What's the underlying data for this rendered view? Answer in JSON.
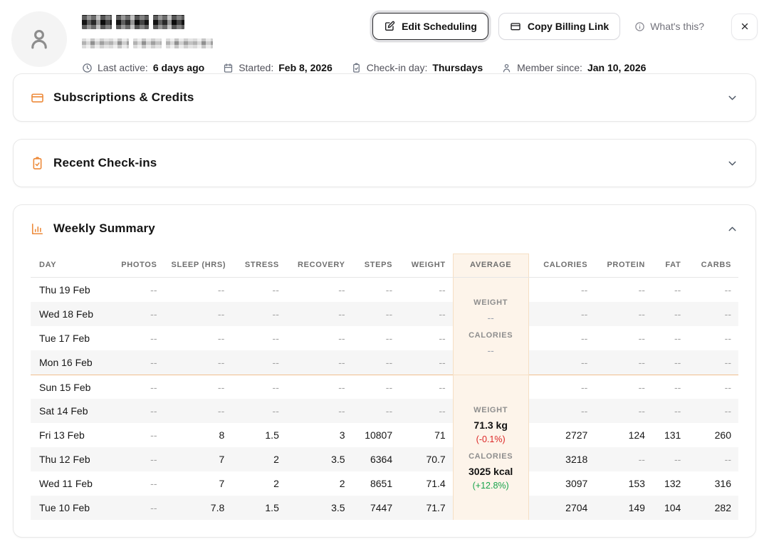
{
  "header": {
    "name_redacted": true,
    "email_redacted": true,
    "actions": {
      "edit_scheduling": "Edit Scheduling",
      "copy_billing_link": "Copy Billing Link",
      "whats_this": "What's this?"
    },
    "meta": {
      "items": [
        {
          "icon": "clock-icon",
          "label": "Last active: ",
          "value": "6 days ago"
        },
        {
          "icon": "calendar-icon",
          "label": "Started: ",
          "value": "Feb 8, 2026"
        },
        {
          "icon": "clipboard-check-icon",
          "label": "Check-in day: ",
          "value": "Thursdays"
        },
        {
          "icon": "person-icon",
          "label": "Member since: ",
          "value": "Jan 10, 2026"
        }
      ]
    }
  },
  "cards": {
    "subscriptions": {
      "title": "Subscriptions & Credits",
      "collapsed": true
    },
    "checkins": {
      "title": "Recent Check-ins",
      "collapsed": true
    },
    "weekly": {
      "title": "Weekly Summary",
      "collapsed": false
    }
  },
  "table": {
    "columns": [
      "DAY",
      "PHOTOS",
      "SLEEP (HRS)",
      "STRESS",
      "RECOVERY",
      "STEPS",
      "WEIGHT",
      "AVERAGE",
      "CALORIES",
      "PROTEIN",
      "FAT",
      "CARBS"
    ],
    "weeks": [
      {
        "average": {
          "weight_label": "WEIGHT",
          "weight_value": "--",
          "weight_change": null,
          "weight_change_positive": null,
          "calories_label": "CALORIES",
          "calories_value": "--",
          "calories_change": null,
          "calories_change_positive": null
        },
        "rows": [
          {
            "day": "Thu 19 Feb",
            "values": [
              "--",
              "--",
              "--",
              "--",
              "--",
              "--"
            ],
            "right": [
              "--",
              "--",
              "--",
              "--"
            ]
          },
          {
            "day": "Wed 18 Feb",
            "values": [
              "--",
              "--",
              "--",
              "--",
              "--",
              "--"
            ],
            "right": [
              "--",
              "--",
              "--",
              "--"
            ]
          },
          {
            "day": "Tue 17 Feb",
            "values": [
              "--",
              "--",
              "--",
              "--",
              "--",
              "--"
            ],
            "right": [
              "--",
              "--",
              "--",
              "--"
            ]
          },
          {
            "day": "Mon 16 Feb",
            "values": [
              "--",
              "--",
              "--",
              "--",
              "--",
              "--"
            ],
            "right": [
              "--",
              "--",
              "--",
              "--"
            ]
          }
        ]
      },
      {
        "average": {
          "weight_label": "WEIGHT",
          "weight_value": "71.3 kg",
          "weight_change": "(-0.1%)",
          "weight_change_positive": false,
          "calories_label": "CALORIES",
          "calories_value": "3025 kcal",
          "calories_change": "(+12.8%)",
          "calories_change_positive": true
        },
        "rows": [
          {
            "day": "Sun 15 Feb",
            "values": [
              "--",
              "--",
              "--",
              "--",
              "--",
              "--"
            ],
            "right": [
              "--",
              "--",
              "--",
              "--"
            ]
          },
          {
            "day": "Sat 14 Feb",
            "values": [
              "--",
              "--",
              "--",
              "--",
              "--",
              "--"
            ],
            "right": [
              "--",
              "--",
              "--",
              "--"
            ]
          },
          {
            "day": "Fri 13 Feb",
            "values": [
              "--",
              "8",
              "1.5",
              "3",
              "10807",
              "71"
            ],
            "right": [
              "2727",
              "124",
              "131",
              "260"
            ]
          },
          {
            "day": "Thu 12 Feb",
            "values": [
              "--",
              "7",
              "2",
              "3.5",
              "6364",
              "70.7"
            ],
            "right": [
              "3218",
              "--",
              "--",
              "--"
            ]
          },
          {
            "day": "Wed 11 Feb",
            "values": [
              "--",
              "7",
              "2",
              "2",
              "8651",
              "71.4"
            ],
            "right": [
              "3097",
              "153",
              "132",
              "316"
            ]
          },
          {
            "day": "Tue 10 Feb",
            "values": [
              "--",
              "7.8",
              "1.5",
              "3.5",
              "7447",
              "71.7"
            ],
            "right": [
              "2704",
              "149",
              "104",
              "282"
            ]
          }
        ]
      }
    ]
  },
  "colors": {
    "accent_orange": "#ed8a3a",
    "average_col_bg": "#fdf4ea",
    "average_col_border": "#f6dfc4",
    "week_separator": "#f1bf8d",
    "stripe_row": "#f6f6f6",
    "negative_pct": "#dc2626",
    "positive_pct": "#16a34a"
  }
}
